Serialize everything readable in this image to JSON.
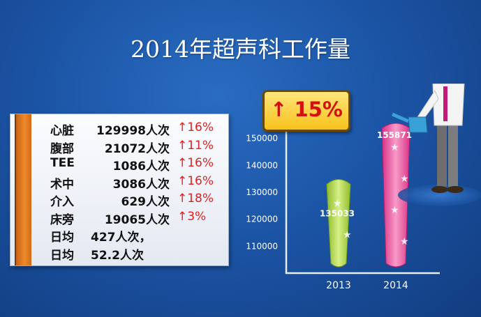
{
  "title": "2014年超声科工作量",
  "stats": [
    {
      "name": "心脏",
      "value": "129998人次",
      "change": "↑16%"
    },
    {
      "name": "腹部",
      "value": "21072人次",
      "change": "↑11%"
    },
    {
      "name": "TEE",
      "value": "1086人次",
      "change": "↑16%"
    },
    {
      "name": "术中",
      "value": "3086人次",
      "change": "↑16%"
    },
    {
      "name": "介入",
      "value": "629人次",
      "change": "↑18%"
    },
    {
      "name": "床旁",
      "value": "19065人次",
      "change": "↑3%"
    }
  ],
  "daily": [
    {
      "name": "日均",
      "value": "427人次，"
    },
    {
      "name": "日均",
      "value": "52.2人次"
    }
  ],
  "growth_badge": "↑ 15%",
  "colors": {
    "bar_2013": "#b5d957",
    "bar_2014": "#e8449a",
    "badge": "#f7c21c",
    "change": "#e02020"
  },
  "chart_data": {
    "type": "bar",
    "categories": [
      "2013",
      "2014"
    ],
    "values": [
      135033,
      155871
    ],
    "data_labels": [
      "135033",
      "155871"
    ],
    "y_ticks": [
      "110000",
      "120000",
      "130000",
      "140000",
      "150000"
    ],
    "y_tick_values": [
      110000,
      120000,
      130000,
      140000,
      150000
    ],
    "ylim": [
      100000,
      160000
    ],
    "title": "",
    "xlabel": "",
    "ylabel": "",
    "grid": false
  }
}
